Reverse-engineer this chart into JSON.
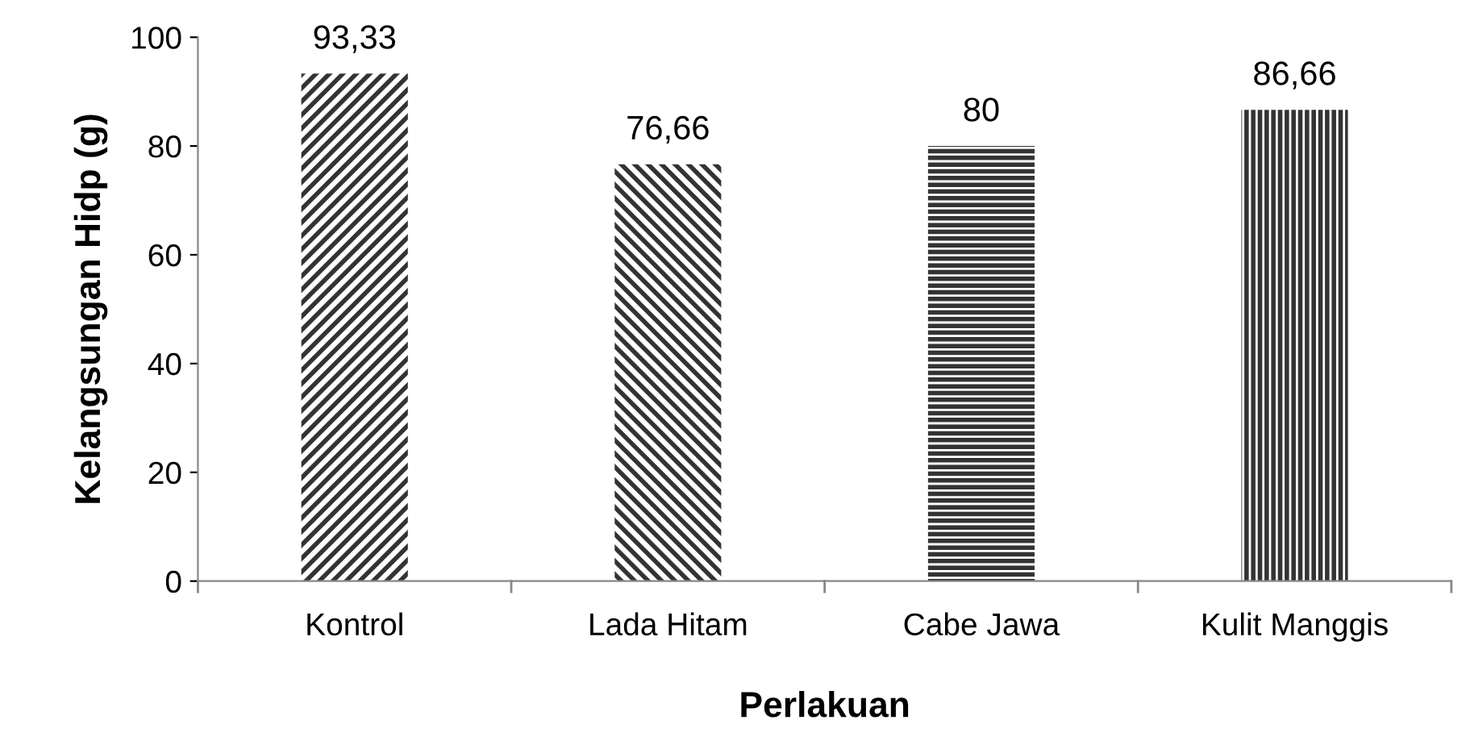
{
  "chart_data": {
    "type": "bar",
    "xlabel": "Perlakuan",
    "ylabel": "Kelangsungan Hidp (g)",
    "categories": [
      "Kontrol",
      "Lada Hitam",
      "Cabe Jawa",
      "Kulit Manggis"
    ],
    "values": [
      93.33,
      76.66,
      80,
      86.66
    ],
    "value_labels": [
      "93,33",
      "76,66",
      "80",
      "86,66"
    ],
    "colors": [
      "#333333",
      "#333333",
      "#333333",
      "#333333"
    ],
    "ylim": [
      0,
      100
    ],
    "yticks": [
      0,
      20,
      40,
      60,
      80,
      100
    ],
    "grid": false,
    "legend": false
  }
}
